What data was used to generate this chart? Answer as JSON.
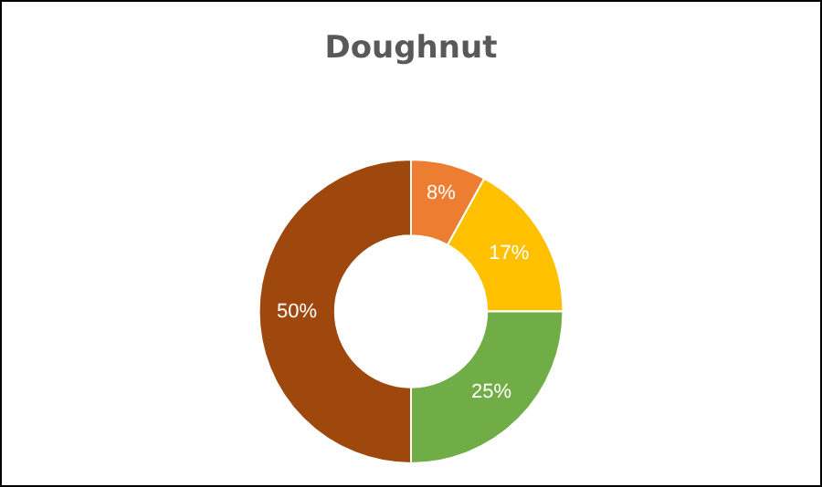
{
  "chart_data": {
    "type": "donut",
    "title": "Doughnut",
    "categories": [
      null,
      null,
      null,
      null
    ],
    "values": [
      8,
      17,
      25,
      50
    ],
    "value_labels": [
      "8%",
      "17%",
      "25%",
      "50%"
    ],
    "colors": [
      "#ed7d31",
      "#ffc000",
      "#70ad47",
      "#9e480e"
    ],
    "legend": false
  }
}
